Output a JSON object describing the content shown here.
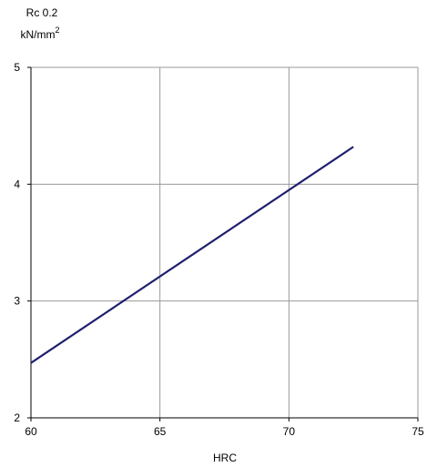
{
  "chart_data": {
    "type": "line",
    "x": [
      60,
      72.5
    ],
    "series": [
      {
        "values": [
          2.47,
          4.32
        ],
        "color": "#1f1f6f"
      }
    ],
    "title": "",
    "xlabel": "HRC",
    "ylabel_line1": "Rc 0.2",
    "ylabel_line2_base": "kN/mm",
    "ylabel_line2_sup": "2",
    "xlim": [
      60,
      75
    ],
    "ylim": [
      2,
      5
    ],
    "xticks": [
      60,
      65,
      70,
      75
    ],
    "yticks": [
      2,
      3,
      4,
      5
    ],
    "grid": true,
    "grid_color": "#999999",
    "axis_color": "#000000"
  }
}
